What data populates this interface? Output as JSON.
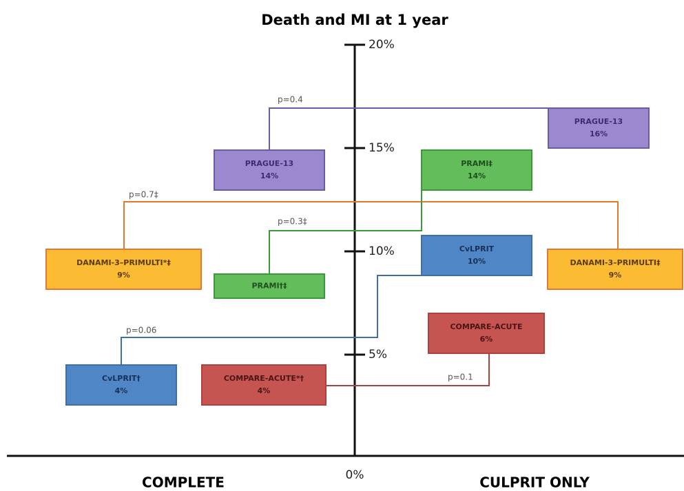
{
  "title": "Death and MI at 1 year",
  "axis": {
    "ticks": [
      "20%",
      "15%",
      "10%",
      "5%",
      "0%"
    ]
  },
  "groups": {
    "complete": "COMPLETE",
    "culprit_only": "CULPRIT ONLY"
  },
  "trials": [
    {
      "p_value": "p=0.4",
      "complete": {
        "name": "PRAGUE-13",
        "value": "14%"
      },
      "culprit_only": {
        "name": "PRAGUE-13",
        "value": "16%"
      }
    },
    {
      "p_value": "p=0.7‡",
      "complete": {
        "name": "DANAMI-3–PRIMULTI*‡",
        "value": "9%"
      },
      "culprit_only": {
        "name": "DANAMI-3–PRIMULTI‡",
        "value": "9%"
      }
    },
    {
      "p_value": "p=0.3‡",
      "complete": {
        "name": "PRAMI†‡"
      },
      "culprit_only": {
        "name": "PRAMI‡",
        "value": "14%"
      }
    },
    {
      "p_value": "p=0.06",
      "complete": {
        "name": "CvLPRIT†",
        "value": "4%"
      },
      "culprit_only": {
        "name": "CvLPRIT",
        "value": "10%"
      }
    },
    {
      "p_value": "p=0.1",
      "complete": {
        "name": "COMPARE-ACUTE*†",
        "value": "4%"
      },
      "culprit_only": {
        "name": "COMPARE-ACUTE",
        "value": "6%"
      }
    }
  ]
}
